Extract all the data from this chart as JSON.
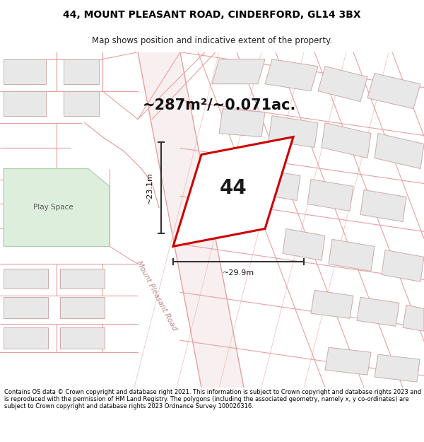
{
  "title_line1": "44, MOUNT PLEASANT ROAD, CINDERFORD, GL14 3BX",
  "title_line2": "Map shows position and indicative extent of the property.",
  "area_text": "~287m²/~0.071ac.",
  "property_number": "44",
  "dim1_label": "~23.1m",
  "dim2_label": "~29.9m",
  "road_label": "Mount Pleasant Road",
  "play_space_label": "Play Space",
  "footer_text": "Contains OS data © Crown copyright and database right 2021. This information is subject to Crown copyright and database rights 2023 and is reproduced with the permission of HM Land Registry. The polygons (including the associated geometry, namely x, y co-ordinates) are subject to Crown copyright and database rights 2023 Ordnance Survey 100026316.",
  "map_bg": "#ffffff",
  "building_fill": "#e8e8e8",
  "building_edge": "#ccaaaa",
  "road_line_color": "#e8a0a0",
  "highlight_fill": "#ffffff",
  "highlight_edge": "#cc0000",
  "green_fill": "#ddeedd",
  "green_edge": "#aabbaa",
  "play_space_outline": "#bbbbbb",
  "dim_line_color": "#333333",
  "text_color": "#000000",
  "road_label_color": "#bb8888"
}
